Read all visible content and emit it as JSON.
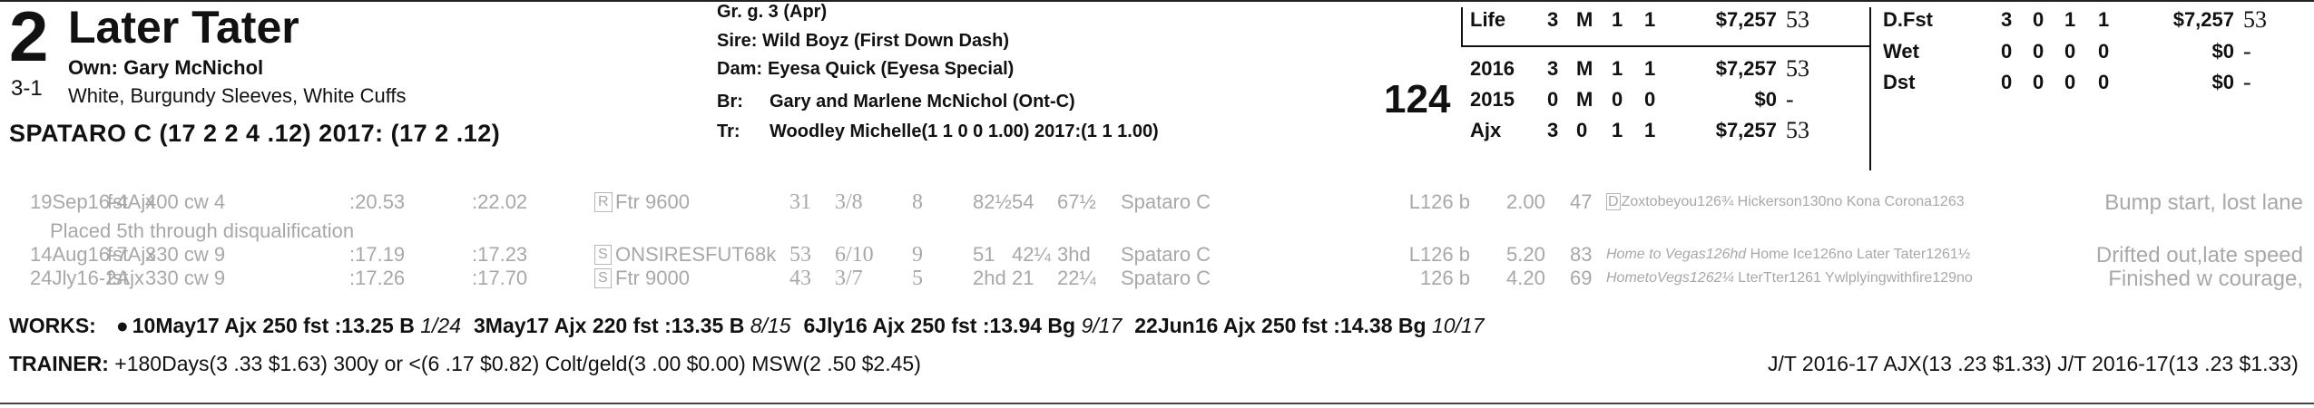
{
  "entry": {
    "program_number": "2",
    "horse_name": "Later Tater",
    "owner": "Own: Gary McNichol",
    "odds": "3-1",
    "silks": "White, Burgundy Sleeves, White Cuffs",
    "jockey": "SPATARO C (17 2 2 4 .12) 2017: (17 2 .12)",
    "weight": "124"
  },
  "breeding": {
    "description": "Gr. g. 3 (Apr)",
    "sire": "Sire: Wild Boyz (First Down Dash)",
    "dam_label": "Dam:",
    "dam": "Eyesa Quick (Eyesa Special)",
    "breeder_label": "Br:",
    "breeder": "Gary and Marlene McNichol (Ont-C)",
    "trainer_label": "Tr:",
    "trainer": "Woodley Michelle(1 1 0 0 1.00)  2017:(1 1 1.00)"
  },
  "record_left": [
    {
      "label": "Life",
      "starts": "3",
      "w": "M",
      "p": "1",
      "s": "1",
      "earnings": "$7,257",
      "fig": "53"
    },
    {
      "label": "2016",
      "starts": "3",
      "w": "M",
      "p": "1",
      "s": "1",
      "earnings": "$7,257",
      "fig": "53"
    },
    {
      "label": "2015",
      "starts": "0",
      "w": "M",
      "p": "0",
      "s": "0",
      "earnings": "$0",
      "fig": "-"
    },
    {
      "label": "Ajx",
      "starts": "3",
      "w": "0",
      "p": "1",
      "s": "1",
      "earnings": "$7,257",
      "fig": "53"
    }
  ],
  "record_right": [
    {
      "label": "D.Fst",
      "starts": "3",
      "w": "0",
      "p": "1",
      "s": "1",
      "earnings": "$7,257",
      "fig": "53"
    },
    {
      "label": "Wet",
      "starts": "0",
      "w": "0",
      "p": "0",
      "s": "0",
      "earnings": "$0",
      "fig": "-"
    },
    {
      "label": "Dst",
      "starts": "0",
      "w": "0",
      "p": "0",
      "s": "0",
      "earnings": "$0",
      "fig": "-"
    }
  ],
  "past_performances": [
    {
      "date": "19Sep16-4Ajx",
      "surface": "fst",
      "dist": "400 cw 4",
      "frac1": ":20.53",
      "frac2": ":22.02",
      "race_type": "Ftr 9600",
      "race_mark": "R",
      "speed": "31",
      "post": "3/8",
      "start": "8",
      "call1": "82½",
      "call2": "54",
      "finish": "67½",
      "jockey": "Spataro C",
      "weight": "L126 b",
      "odds": "2.00",
      "rating": "47",
      "comp_lead": "D",
      "comp_italic": "",
      "comp_rest": "Zoxtobeyou126¾ Hickerson130no Kona Corona1263",
      "comment": "Bump start, lost lane"
    },
    {
      "date": "14Aug16-7Ajx",
      "surface": "fst",
      "dist": "330 cw 9",
      "frac1": ":17.19",
      "frac2": ":17.23",
      "race_type": "ONSIRESFUT68k",
      "race_mark": "S",
      "speed": "53",
      "post": "6/10",
      "start": "9",
      "call1": "51",
      "call2": "42¼",
      "finish": "3hd",
      "jockey": "Spataro C",
      "weight": "L126 b",
      "odds": "5.20",
      "rating": "83",
      "comp_lead": "",
      "comp_italic": "Home to Vegas126hd",
      "comp_rest": " Home Ice126no Later Tater1261½",
      "comment": "Drifted out,late speed"
    },
    {
      "date": "24Jly16-2Ajx",
      "surface": "fst",
      "dist": "330 cw 9",
      "frac1": ":17.26",
      "frac2": ":17.70",
      "race_type": "Ftr 9000",
      "race_mark": "S",
      "speed": "43",
      "post": "3/7",
      "start": "5",
      "call1": "2hd",
      "call2": "21",
      "finish": "22¼",
      "jockey": "Spataro C",
      "weight": "126 b",
      "odds": "4.20",
      "rating": "69",
      "comp_lead": "",
      "comp_italic": "HometoVegs1262¼",
      "comp_rest": " LterTter1261 Ywlplyingwithfire129no",
      "comment": "Finished w courage,"
    }
  ],
  "race_note": "Placed 5th through disqualification",
  "works": {
    "label": "WORKS:",
    "items": [
      {
        "bullet": "●",
        "text": "10May17 Ajx 250 fst :13.25 B",
        "rank": "1/24"
      },
      {
        "bullet": "",
        "text": "3May17 Ajx 220 fst :13.35 B",
        "rank": "8/15"
      },
      {
        "bullet": "",
        "text": "6Jly16 Ajx 250 fst :13.94 Bg",
        "rank": "9/17"
      },
      {
        "bullet": "",
        "text": "22Jun16 Ajx 250 fst :14.38 Bg",
        "rank": "10/17"
      }
    ]
  },
  "trainer_stats": {
    "label": "TRAINER:",
    "text": "+180Days(3 .33 $1.63) 300y or <(6 .17 $0.82) Colt/geld(3 .00 $0.00) MSW(2 .50 $2.45)",
    "jt": "J/T 2016-17 AJX(13 .23 $1.33)  J/T 2016-17(13 .23 $1.33)"
  }
}
